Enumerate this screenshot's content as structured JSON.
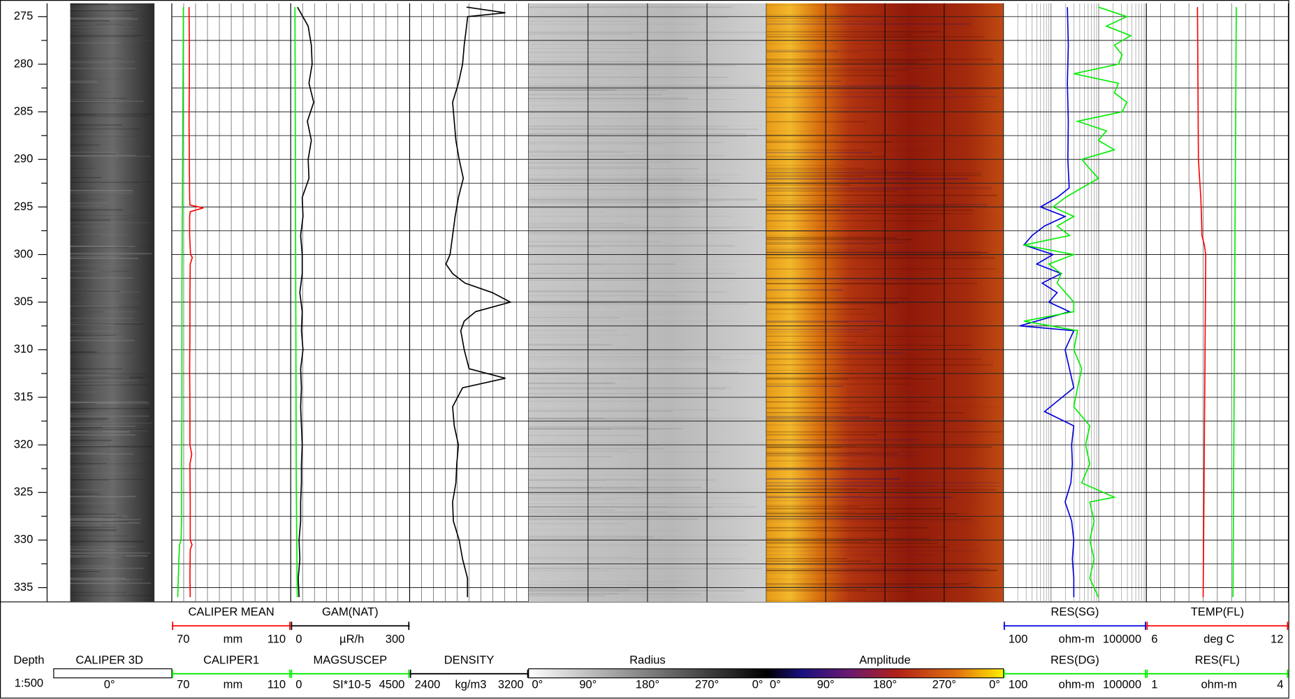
{
  "chart_data": {
    "type": "well_log",
    "ylim": [
      273.6,
      336.5
    ],
    "yticks": [
      275,
      280,
      285,
      290,
      295,
      300,
      305,
      310,
      315,
      320,
      325,
      330,
      335
    ],
    "yminor": [
      277.5,
      282.5,
      287.5,
      292.5,
      297.5,
      302.5,
      307.5,
      312.5,
      317.5,
      322.5,
      327.5,
      332.5
    ],
    "tracks": [
      {
        "name": "Depth",
        "scale": "1:500"
      },
      {
        "name": "CALIPER 3D",
        "colormap": "dark-gray",
        "scale_labels": [
          "0°"
        ]
      },
      {
        "curves": [
          {
            "name": "CALIPER MEAN",
            "color": "#ff0000",
            "unit": "mm",
            "xlim": [
              70,
              110
            ],
            "depth": [
              274,
              278,
              282,
              286,
              290,
              294,
              294.8,
              295.1,
              295.5,
              296,
              298,
              300,
              300.3,
              301,
              304,
              308,
              312,
              316,
              320,
              321,
              322,
              326,
              330,
              330.5,
              331,
              334,
              336
            ],
            "values": [
              75.8,
              75.9,
              75.9,
              75.8,
              75.9,
              76.0,
              76.1,
              80.6,
              76.2,
              76.0,
              76.0,
              76.3,
              76.9,
              76.2,
              76.1,
              76.1,
              76.0,
              76.1,
              76.1,
              76.7,
              76.1,
              76.2,
              76.2,
              76.8,
              76.2,
              76.1,
              76.2
            ]
          },
          {
            "name": "CALIPER1",
            "color": "#00ee00",
            "unit": "mm",
            "xlim": [
              70,
              110
            ],
            "depth": [
              274,
              280,
              286,
              292,
              298,
              304,
              310,
              316,
              322,
              328,
              330,
              330.5,
              332,
              334,
              336
            ],
            "values": [
              73.9,
              73.8,
              73.7,
              73.6,
              73.5,
              73.4,
              73.4,
              73.4,
              73.3,
              73.3,
              73.1,
              72.6,
              72.4,
              72.2,
              72.0
            ]
          }
        ]
      },
      {
        "curves": [
          {
            "name": "GAM(NAT)",
            "color": "#000000",
            "unit": "µR/h",
            "xlim": [
              0,
              300
            ],
            "depth": [
              274,
              276,
              278,
              280,
              282,
              284,
              286,
              288,
              290,
              292,
              294,
              296,
              298,
              300,
              302,
              304,
              306,
              308,
              310,
              312,
              314,
              316,
              318,
              320,
              322,
              324,
              326,
              328,
              330,
              332,
              334,
              336
            ],
            "values": [
              17,
              44,
              52,
              54,
              46,
              58,
              42,
              52,
              44,
              46,
              29,
              31,
              25,
              29,
              29,
              23,
              29,
              27,
              31,
              25,
              27,
              25,
              27,
              29,
              27,
              27,
              25,
              25,
              21,
              23,
              19,
              21
            ]
          },
          {
            "name": "MAGSUSCEP",
            "color": "#00ee00",
            "unit": "SI*10-5",
            "xlim": [
              0,
              4500
            ],
            "depth": [
              274,
              284,
              294,
              304,
              314,
              324,
              334,
              336
            ],
            "values": [
              160,
              170,
              180,
              190,
              200,
              210,
              240,
              250
            ]
          }
        ]
      },
      {
        "curves": [
          {
            "name": "DENSITY",
            "color": "#000000",
            "unit": "kg/m3",
            "xlim": [
              2400,
              3200
            ],
            "depth": [
              274,
              274.6,
              275,
              276,
              278,
              280,
              282,
              284,
              286,
              288,
              290,
              292,
              294,
              296,
              298,
              300,
              301,
              302,
              303,
              304,
              305,
              306,
              307,
              308,
              310,
              312,
              313,
              314,
              316,
              318,
              320,
              322,
              324,
              326,
              328,
              330,
              332,
              334,
              336
            ],
            "values": [
              2783,
              3044,
              2790,
              2783,
              2767,
              2756,
              2728,
              2689,
              2700,
              2711,
              2733,
              2761,
              2728,
              2706,
              2689,
              2672,
              2644,
              2689,
              2772,
              2956,
              3078,
              2844,
              2767,
              2744,
              2767,
              2800,
              3044,
              2756,
              2689,
              2700,
              2728,
              2717,
              2711,
              2689,
              2694,
              2733,
              2756,
              2789,
              2789
            ]
          }
        ]
      },
      {
        "name": "Radius",
        "colormap": "gray",
        "scale_labels": [
          "0°",
          "90°",
          "180°",
          "270°",
          "0°"
        ]
      },
      {
        "name": "Amplitude",
        "colormap": "heat",
        "scale_labels": [
          "0°",
          "90°",
          "180°",
          "270°",
          "0°"
        ]
      },
      {
        "log": true,
        "curves": [
          {
            "name": "RES(SG)",
            "color": "#0000dd",
            "unit": "ohm-m",
            "xlim": [
              100,
              100000
            ],
            "depth": [
              274,
              278,
              282,
              286,
              290,
              293,
              294,
              295,
              296,
              297,
              298,
              299,
              300,
              301,
              302,
              303,
              304,
              305,
              306,
              307.5,
              308,
              310,
              312,
              314,
              316.5,
              318,
              320,
              322,
              324,
              326,
              328,
              330,
              332,
              334,
              336
            ],
            "values": [
              2200,
              2300,
              2200,
              2300,
              2250,
              2400,
              1340,
              600,
              1970,
              730,
              400,
              270,
              1100,
              500,
              1630,
              650,
              1340,
              900,
              2430,
              220,
              3000,
              1970,
              2430,
              3000,
              730,
              3000,
              2700,
              2800,
              2600,
              1970,
              2700,
              3000,
              2800,
              3000,
              3000
            ]
          },
          {
            "name": "RES(DG)",
            "color": "#00ee00",
            "unit": "ohm-m",
            "xlim": [
              100,
              100000
            ],
            "depth": [
              274,
              275,
              276,
              277,
              278,
              279,
              280,
              281,
              282,
              283,
              284,
              285,
              286,
              287,
              288,
              289,
              290,
              291,
              292,
              293,
              294,
              295,
              296,
              297,
              298,
              299,
              300,
              301,
              302,
              303,
              304,
              305,
              306,
              307,
              308,
              310,
              312,
              314,
              316,
              318,
              320,
              322,
              324,
              325.5,
              326,
              328,
              330,
              332,
              334,
              336
            ],
            "values": [
              9850,
              39000,
              14500,
              47000,
              21300,
              31000,
              26000,
              3000,
              26000,
              21300,
              39000,
              31000,
              3600,
              14500,
              9850,
              21300,
              4400,
              6500,
              9850,
              4400,
              2000,
              1100,
              3000,
              1340,
              2450,
              270,
              3000,
              900,
              1630,
              1340,
              2000,
              3000,
              3000,
              270,
              3600,
              3000,
              4400,
              3600,
              3000,
              6500,
              5300,
              6500,
              4400,
              21300,
              6500,
              8000,
              6500,
              8000,
              6500,
              9850
            ]
          }
        ]
      },
      {
        "curves": [
          {
            "name": "TEMP(FL)",
            "color": "#ff0000",
            "unit": "deg C",
            "xlim": [
              6,
              12
            ],
            "depth": [
              274,
              290,
              294,
              296,
              298,
              299,
              300,
              310,
              320,
              330,
              336
            ],
            "values": [
              8.16,
              8.2,
              8.3,
              8.33,
              8.35,
              8.45,
              8.51,
              8.48,
              8.45,
              8.42,
              8.4
            ]
          },
          {
            "name": "RES(FL)",
            "color": "#00ee00",
            "unit": "ohm-m",
            "xlim": [
              1,
              4
            ],
            "depth": [
              274,
              300,
              336
            ],
            "values": [
              2.9,
              2.87,
              2.83
            ]
          }
        ]
      }
    ]
  }
}
